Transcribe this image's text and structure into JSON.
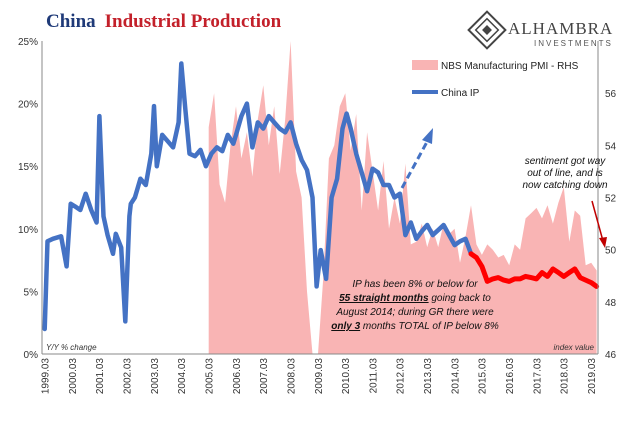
{
  "title": {
    "part1": "China",
    "part2": "Industrial Production"
  },
  "logo": {
    "name": "ALHAMBRA",
    "sub": "INVESTMENTS"
  },
  "legend": {
    "pmi_label": "NBS Manufacturing PMI - RHS",
    "ip_label": "China IP"
  },
  "axis_notes": {
    "left": "Y/Y % change",
    "right": "index value"
  },
  "annotations": {
    "sentiment": [
      "sentiment got way",
      "out of line, and is",
      "now catching down"
    ],
    "ip_note": {
      "line1": "IP has been 8% or below for",
      "line2": "55 straight months",
      "line2b": " going back to",
      "line3": "August 2014; during GR there were",
      "line4a": "only 3",
      "line4b": " months TOTAL of IP below 8%"
    }
  },
  "colors": {
    "pmi": "#f9b4b4",
    "ip": "#4472c4",
    "ip_recent": "#ff0000",
    "title_blue": "#1f3a78",
    "title_red": "#c3202a"
  },
  "chart_data": {
    "type": "line",
    "left_axis": {
      "label": "Y/Y % change",
      "ticks": [
        "0%",
        "5%",
        "10%",
        "15%",
        "20%",
        "25%"
      ],
      "ylim": [
        0,
        25
      ]
    },
    "right_axis": {
      "label": "index value",
      "ticks": [
        "46",
        "48",
        "50",
        "52",
        "54",
        "56"
      ],
      "ylim": [
        46,
        58
      ]
    },
    "x_ticks": [
      "1999.03",
      "2000.03",
      "2001.03",
      "2002.03",
      "2003.03",
      "2004.03",
      "2005.03",
      "2006.03",
      "2007.03",
      "2008.03",
      "2009.03",
      "2010.03",
      "2011.03",
      "2012.03",
      "2013.03",
      "2014.03",
      "2015.03",
      "2016.03",
      "2017.03",
      "2018.03",
      "2019.03"
    ],
    "series": [
      {
        "name": "China IP",
        "axis": "left",
        "x": [
          1999.0,
          1999.1,
          1999.3,
          1999.6,
          1999.8,
          1999.95,
          2000.1,
          2000.3,
          2000.5,
          2000.7,
          2000.9,
          2001.0,
          2001.15,
          2001.3,
          2001.5,
          2001.6,
          2001.8,
          2001.95,
          2002.1,
          2002.15,
          2002.3,
          2002.5,
          2002.7,
          2002.9,
          2003.0,
          2003.1,
          2003.3,
          2003.5,
          2003.7,
          2003.9,
          2004.0,
          2004.15,
          2004.3,
          2004.5,
          2004.7,
          2004.9,
          2005.1,
          2005.3,
          2005.5,
          2005.7,
          2005.9,
          2006.0,
          2006.2,
          2006.4,
          2006.6,
          2006.8,
          2007.0,
          2007.2,
          2007.4,
          2007.6,
          2007.8,
          2008.0,
          2008.2,
          2008.4,
          2008.6,
          2008.8,
          2008.95,
          2009.1,
          2009.3,
          2009.5,
          2009.7,
          2009.9,
          2010.05,
          2010.2,
          2010.4,
          2010.6,
          2010.8,
          2011.0,
          2011.2,
          2011.4,
          2011.6,
          2011.8,
          2012.0,
          2012.2,
          2012.4,
          2012.6,
          2012.8,
          2013.0,
          2013.2,
          2013.4,
          2013.6,
          2013.8,
          2014.0,
          2014.2,
          2014.4,
          2014.6
        ],
        "values": [
          2.0,
          9.0,
          9.2,
          9.4,
          7.0,
          12.0,
          11.8,
          11.5,
          12.8,
          11.5,
          10.5,
          19.0,
          11.0,
          9.5,
          8.0,
          9.6,
          8.5,
          2.6,
          11.0,
          12.0,
          12.5,
          14.0,
          13.5,
          16.0,
          19.8,
          15.0,
          17.5,
          17.0,
          16.5,
          18.5,
          23.2,
          19.5,
          16.0,
          15.8,
          16.3,
          15.0,
          16.0,
          16.5,
          16.2,
          17.5,
          16.8,
          17.5,
          19.0,
          20.0,
          16.5,
          18.5,
          18.0,
          19.0,
          18.5,
          18.0,
          17.7,
          18.5,
          16.8,
          15.5,
          14.7,
          12.5,
          5.4,
          8.3,
          6.0,
          12.5,
          14.0,
          18.0,
          19.2,
          18.0,
          16.0,
          14.5,
          13.0,
          14.8,
          14.5,
          13.5,
          13.5,
          12.5,
          12.8,
          9.5,
          10.5,
          9.2,
          9.8,
          10.3,
          9.5,
          9.9,
          10.3,
          9.5,
          8.7,
          9.0,
          9.2,
          8.0
        ]
      },
      {
        "name": "China IP",
        "axis": "left",
        "x": [
          2014.6,
          2014.8,
          2015.0,
          2015.2,
          2015.4,
          2015.6,
          2015.8,
          2016.0,
          2016.2,
          2016.4,
          2016.6,
          2016.8,
          2017.0,
          2017.2,
          2017.4,
          2017.6,
          2017.8,
          2018.0,
          2018.2,
          2018.4,
          2018.6,
          2018.8,
          2019.0,
          2019.2
        ],
        "values": [
          8.0,
          7.7,
          7.0,
          5.8,
          6.0,
          6.1,
          5.9,
          5.8,
          6.0,
          6.0,
          6.2,
          6.1,
          6.0,
          6.5,
          6.2,
          6.8,
          6.5,
          6.2,
          6.5,
          6.8,
          6.1,
          5.9,
          5.7,
          5.4
        ]
      },
      {
        "name": "NBS Manufacturing PMI - RHS",
        "axis": "right",
        "type": "area",
        "x": [
          2005.0,
          2005.2,
          2005.4,
          2005.6,
          2005.8,
          2006.0,
          2006.2,
          2006.4,
          2006.6,
          2006.8,
          2007.0,
          2007.2,
          2007.4,
          2007.6,
          2007.8,
          2008.0,
          2008.2,
          2008.4,
          2008.6,
          2008.8,
          2009.0,
          2009.2,
          2009.4,
          2009.6,
          2009.8,
          2010.0,
          2010.2,
          2010.4,
          2010.6,
          2010.8,
          2011.0,
          2011.2,
          2011.4,
          2011.6,
          2011.8,
          2012.0,
          2012.2,
          2012.4,
          2012.6,
          2012.8,
          2013.0,
          2013.2,
          2013.4,
          2013.6,
          2013.8,
          2014.0,
          2014.2,
          2014.4,
          2014.6,
          2014.8,
          2015.0,
          2015.2,
          2015.4,
          2015.6,
          2015.8,
          2016.0,
          2016.2,
          2016.4,
          2016.6,
          2016.8,
          2017.0,
          2017.2,
          2017.4,
          2017.6,
          2017.8,
          2018.0,
          2018.2,
          2018.4,
          2018.6,
          2018.8,
          2019.0,
          2019.2
        ],
        "values": [
          54.7,
          56.0,
          52.5,
          51.8,
          54.0,
          55.5,
          53.5,
          54.5,
          52.8,
          55.0,
          56.3,
          54.0,
          55.5,
          52.9,
          55.0,
          58.0,
          53.0,
          52.0,
          48.4,
          45.5,
          44.8,
          49.0,
          53.5,
          54.0,
          55.5,
          56.0,
          53.8,
          55.2,
          51.5,
          54.5,
          53.0,
          51.5,
          53.4,
          50.8,
          52.0,
          51.0,
          53.3,
          50.2,
          50.3,
          51.0,
          50.1,
          50.8,
          50.1,
          51.0,
          50.6,
          50.8,
          49.5,
          50.5,
          51.7,
          50.2,
          49.8,
          50.2,
          50.0,
          49.7,
          49.8,
          49.4,
          50.2,
          50.0,
          51.2,
          51.4,
          51.6,
          51.2,
          51.7,
          51.0,
          51.8,
          52.4,
          50.3,
          51.5,
          51.3,
          49.4,
          49.5,
          49.2
        ]
      }
    ],
    "grid": false,
    "legend_position": "top-right"
  }
}
